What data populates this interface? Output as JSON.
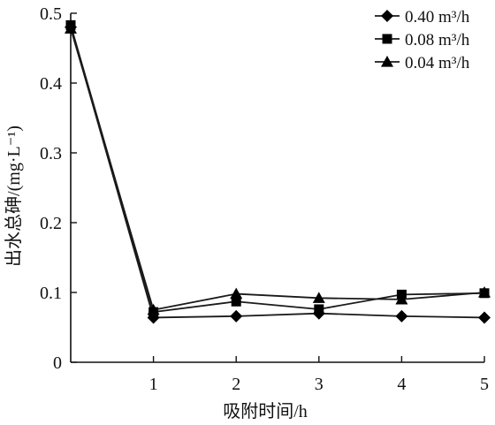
{
  "chart_data": {
    "type": "line",
    "xlabel": "吸附时间/h",
    "ylabel": "出水总砷/(mg·L⁻¹)",
    "x": [
      0,
      1,
      2,
      3,
      4,
      5
    ],
    "x_ticks": [
      "1",
      "2",
      "3",
      "4",
      "5"
    ],
    "y_ticks": [
      "0",
      "0.1",
      "0.2",
      "0.3",
      "0.4",
      "0.5"
    ],
    "xlim": [
      0,
      5
    ],
    "ylim": [
      0,
      0.5
    ],
    "grid": false,
    "legend_position": "top-right",
    "series": [
      {
        "name": "0.40 m³/h",
        "marker": "diamond",
        "values": [
          0.48,
          0.064,
          0.066,
          0.07,
          0.066,
          0.064
        ]
      },
      {
        "name": "0.08 m³/h",
        "marker": "square",
        "values": [
          0.483,
          0.072,
          0.087,
          0.076,
          0.097,
          0.099
        ]
      },
      {
        "name": "0.04 m³/h",
        "marker": "triangle",
        "values": [
          0.478,
          0.075,
          0.098,
          0.092,
          0.09,
          0.1
        ]
      }
    ],
    "colors": {
      "line": "#1a1a1a",
      "marker": "#000000"
    }
  }
}
